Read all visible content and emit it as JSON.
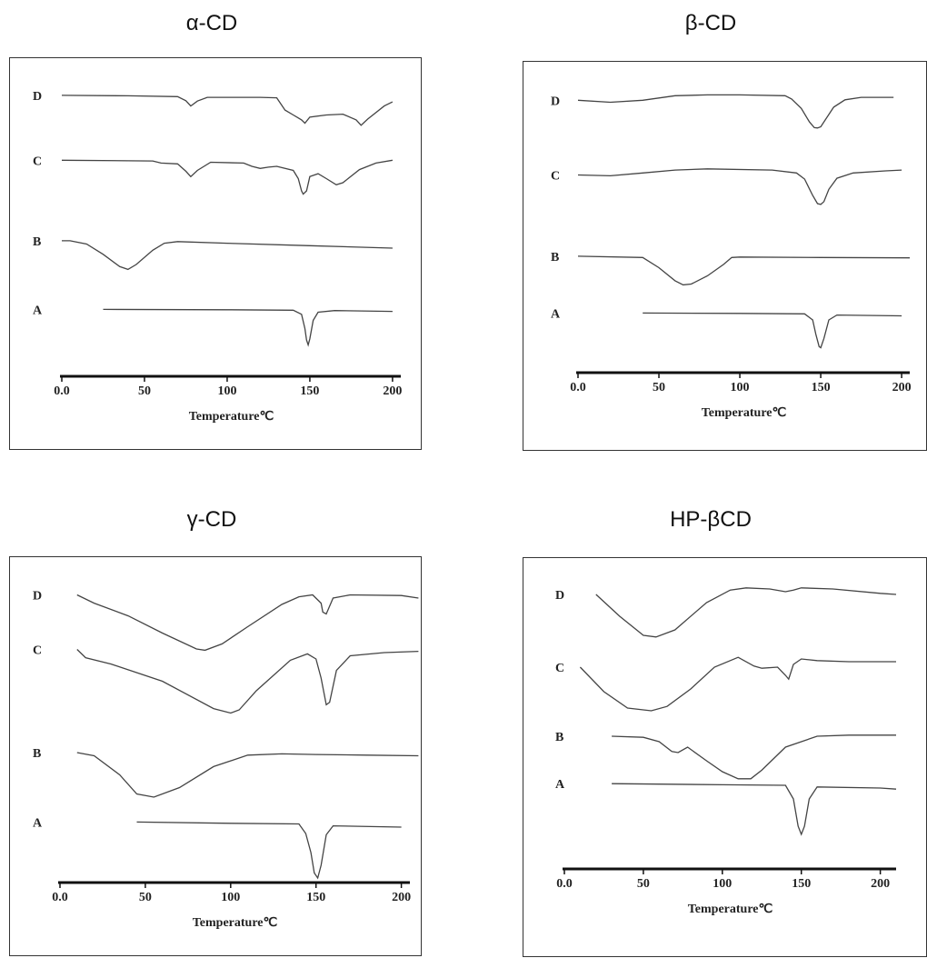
{
  "chart_data": [
    {
      "type": "line",
      "title": "α-CD",
      "xlabel": "Temperature℃",
      "x_ticks": [
        "0.0",
        "50",
        "100",
        "150",
        "200"
      ],
      "xlim": [
        0,
        205
      ],
      "legend": "none",
      "grid": false,
      "series": [
        {
          "name": "D",
          "x": [
            0,
            40,
            70,
            75,
            78,
            82,
            88,
            120,
            130,
            135,
            140,
            145,
            147,
            150,
            160,
            170,
            178,
            181,
            185,
            195,
            200
          ],
          "y": [
            0.98,
            0.97,
            0.95,
            0.85,
            0.72,
            0.84,
            0.93,
            0.93,
            0.92,
            0.62,
            0.5,
            0.38,
            0.3,
            0.45,
            0.5,
            0.52,
            0.38,
            0.25,
            0.4,
            0.72,
            0.82
          ]
        },
        {
          "name": "C",
          "x": [
            0,
            55,
            60,
            70,
            75,
            78,
            82,
            90,
            110,
            115,
            120,
            125,
            130,
            140,
            143,
            145,
            146,
            148,
            150,
            155,
            160,
            166,
            170,
            180,
            190,
            200
          ],
          "y": [
            0.95,
            0.93,
            0.88,
            0.86,
            0.68,
            0.55,
            0.7,
            0.9,
            0.88,
            0.8,
            0.75,
            0.78,
            0.8,
            0.7,
            0.5,
            0.2,
            0.12,
            0.2,
            0.55,
            0.62,
            0.5,
            0.35,
            0.4,
            0.72,
            0.88,
            0.95
          ]
        },
        {
          "name": "B",
          "x": [
            0,
            5,
            15,
            25,
            35,
            40,
            45,
            55,
            62,
            70,
            100,
            150,
            200
          ],
          "y": [
            0.98,
            0.98,
            0.9,
            0.65,
            0.35,
            0.28,
            0.4,
            0.75,
            0.92,
            0.96,
            0.92,
            0.86,
            0.8
          ]
        },
        {
          "name": "A",
          "x": [
            25,
            100,
            140,
            145,
            147,
            148,
            149,
            150,
            152,
            155,
            165,
            200
          ],
          "y": [
            0.97,
            0.96,
            0.95,
            0.85,
            0.5,
            0.22,
            0.1,
            0.25,
            0.7,
            0.9,
            0.94,
            0.92
          ]
        }
      ]
    },
    {
      "type": "line",
      "title": "β-CD",
      "xlabel": "Temperature℃",
      "x_ticks": [
        "0.0",
        "50",
        "100",
        "150",
        "200"
      ],
      "xlim": [
        0,
        205
      ],
      "legend": "none",
      "grid": false,
      "series": [
        {
          "name": "D",
          "x": [
            0,
            20,
            40,
            60,
            80,
            100,
            128,
            132,
            138,
            143,
            146,
            148,
            150,
            153,
            158,
            165,
            175,
            195
          ],
          "y": [
            0.95,
            0.9,
            0.95,
            1.06,
            1.08,
            1.08,
            1.06,
            0.98,
            0.75,
            0.42,
            0.28,
            0.27,
            0.3,
            0.48,
            0.78,
            0.96,
            1.02,
            1.02
          ]
        },
        {
          "name": "C",
          "x": [
            0,
            20,
            40,
            60,
            80,
            120,
            135,
            140,
            145,
            148,
            150,
            152,
            155,
            160,
            170,
            190,
            200
          ],
          "y": [
            0.9,
            0.88,
            0.95,
            1.02,
            1.05,
            1.02,
            0.95,
            0.8,
            0.4,
            0.2,
            0.18,
            0.25,
            0.55,
            0.82,
            0.95,
            1.0,
            1.02
          ]
        },
        {
          "name": "B",
          "x": [
            0,
            40,
            50,
            60,
            65,
            70,
            80,
            90,
            95,
            100,
            150,
            205
          ],
          "y": [
            0.98,
            0.95,
            0.7,
            0.38,
            0.28,
            0.3,
            0.5,
            0.78,
            0.95,
            0.96,
            0.95,
            0.94
          ]
        },
        {
          "name": "A",
          "x": [
            40,
            100,
            140,
            145,
            147,
            149,
            150,
            152,
            155,
            160,
            200
          ],
          "y": [
            0.97,
            0.96,
            0.95,
            0.8,
            0.45,
            0.15,
            0.12,
            0.35,
            0.8,
            0.92,
            0.9
          ]
        }
      ]
    },
    {
      "type": "line",
      "title": "γ-CD",
      "xlabel": "Temperature℃",
      "x_ticks": [
        "0.0",
        "50",
        "100",
        "150",
        "200"
      ],
      "xlim": [
        0,
        205
      ],
      "legend": "none",
      "grid": false,
      "series": [
        {
          "name": "D",
          "x": [
            10,
            20,
            40,
            60,
            80,
            85,
            95,
            110,
            130,
            140,
            148,
            153,
            154,
            156,
            160,
            170,
            200,
            210
          ],
          "y": [
            1.05,
            0.92,
            0.72,
            0.45,
            0.2,
            0.18,
            0.28,
            0.55,
            0.9,
            1.02,
            1.05,
            0.92,
            0.78,
            0.75,
            1.0,
            1.05,
            1.04,
            1.0
          ]
        },
        {
          "name": "C",
          "x": [
            10,
            15,
            30,
            60,
            90,
            100,
            105,
            115,
            135,
            145,
            150,
            153,
            156,
            158,
            162,
            170,
            190,
            210
          ],
          "y": [
            1.05,
            0.92,
            0.82,
            0.55,
            0.12,
            0.05,
            0.1,
            0.4,
            0.88,
            0.98,
            0.9,
            0.6,
            0.18,
            0.22,
            0.72,
            0.95,
            1.0,
            1.02
          ]
        },
        {
          "name": "B",
          "x": [
            10,
            20,
            35,
            45,
            55,
            70,
            90,
            110,
            130,
            150,
            180,
            210
          ],
          "y": [
            1.0,
            0.95,
            0.65,
            0.35,
            0.3,
            0.45,
            0.78,
            0.96,
            0.98,
            0.97,
            0.96,
            0.95
          ]
        },
        {
          "name": "A",
          "x": [
            45,
            100,
            140,
            144,
            147,
            149,
            151,
            153,
            156,
            160,
            200
          ],
          "y": [
            0.98,
            0.96,
            0.95,
            0.8,
            0.5,
            0.18,
            0.1,
            0.3,
            0.78,
            0.92,
            0.9
          ]
        }
      ]
    },
    {
      "type": "line",
      "title": "HP-βCD",
      "xlabel": "Temperature℃",
      "x_ticks": [
        "0.0",
        "50",
        "100",
        "150",
        "200"
      ],
      "xlim": [
        0,
        210
      ],
      "legend": "none",
      "grid": false,
      "series": [
        {
          "name": "D",
          "x": [
            20,
            35,
            50,
            58,
            70,
            90,
            105,
            115,
            130,
            140,
            145,
            150,
            170,
            200,
            210
          ],
          "y": [
            1.0,
            0.6,
            0.25,
            0.22,
            0.35,
            0.85,
            1.08,
            1.12,
            1.1,
            1.05,
            1.08,
            1.12,
            1.1,
            1.02,
            1.0
          ]
        },
        {
          "name": "C",
          "x": [
            10,
            25,
            40,
            55,
            65,
            80,
            95,
            110,
            120,
            125,
            135,
            140,
            142,
            145,
            150,
            160,
            180,
            210
          ],
          "y": [
            1.0,
            0.55,
            0.25,
            0.2,
            0.28,
            0.6,
            1.0,
            1.18,
            1.02,
            0.98,
            1.0,
            0.85,
            0.78,
            1.05,
            1.15,
            1.12,
            1.1,
            1.1
          ]
        },
        {
          "name": "B",
          "x": [
            30,
            50,
            60,
            68,
            72,
            78,
            90,
            100,
            110,
            118,
            125,
            140,
            160,
            180,
            210
          ],
          "y": [
            1.0,
            0.98,
            0.9,
            0.72,
            0.7,
            0.8,
            0.55,
            0.35,
            0.22,
            0.22,
            0.38,
            0.8,
            1.0,
            1.02,
            1.02
          ]
        },
        {
          "name": "A",
          "x": [
            30,
            100,
            140,
            145,
            148,
            150,
            152,
            155,
            160,
            200,
            210
          ],
          "y": [
            0.98,
            0.96,
            0.95,
            0.7,
            0.2,
            0.05,
            0.2,
            0.7,
            0.92,
            0.9,
            0.88
          ]
        }
      ]
    }
  ]
}
